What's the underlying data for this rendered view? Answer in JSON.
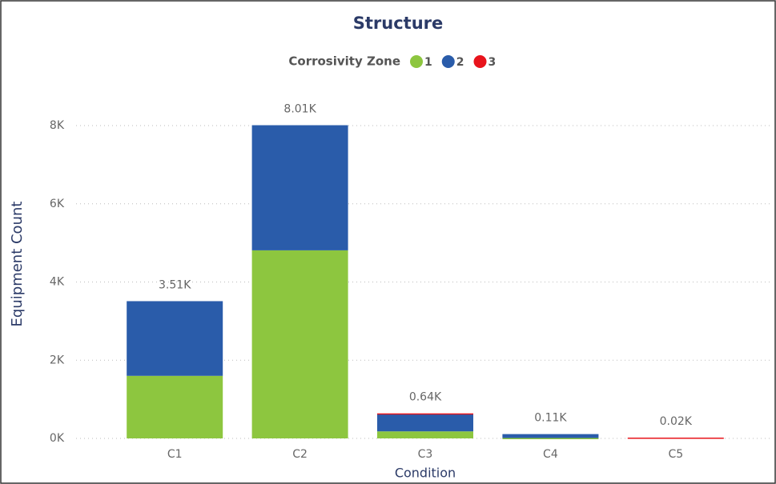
{
  "chart_data": {
    "type": "stacked_bar",
    "title": "Structure",
    "legend_title": "Corrosivity Zone",
    "categories": [
      "C1",
      "C2",
      "C3",
      "C4",
      "C5"
    ],
    "series": [
      {
        "name": "1",
        "color": "#8dc63f",
        "values": [
          1600,
          4810,
          180,
          10,
          0
        ]
      },
      {
        "name": "2",
        "color": "#2a5caa",
        "values": [
          1910,
          3200,
          450,
          100,
          0
        ]
      },
      {
        "name": "3",
        "color": "#e8141c",
        "values": [
          0,
          0,
          10,
          0,
          20
        ]
      }
    ],
    "totals": [
      3510,
      8010,
      640,
      110,
      20
    ],
    "total_labels": [
      "3.51K",
      "8.01K",
      "0.64K",
      "0.11K",
      "0.02K"
    ],
    "xlabel": "Condition",
    "ylabel": "Equipment Count",
    "ylim": [
      0,
      8000
    ],
    "yticks": [
      {
        "value": 0,
        "label": "0K"
      },
      {
        "value": 2000,
        "label": "2K"
      },
      {
        "value": 4000,
        "label": "4K"
      },
      {
        "value": 6000,
        "label": "6K"
      },
      {
        "value": 8000,
        "label": "8K"
      }
    ],
    "grid": true
  }
}
